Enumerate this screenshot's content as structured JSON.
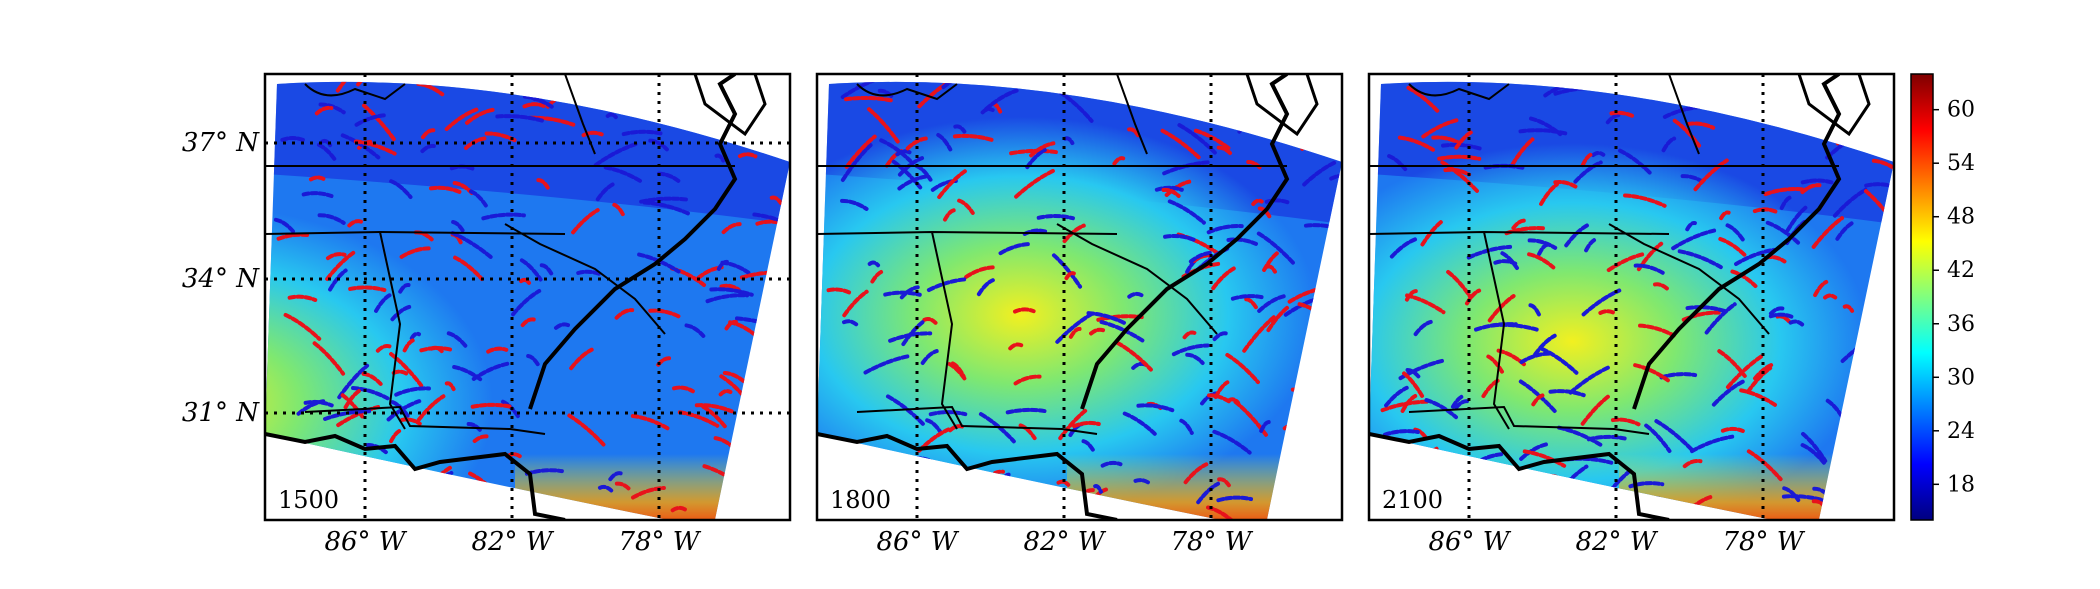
{
  "panels": [
    {
      "time": "1500",
      "hot": [
        0.22,
        0.62
      ]
    },
    {
      "time": "1800",
      "hot": [
        0.45,
        0.52
      ]
    },
    {
      "time": "2100",
      "hot": [
        0.45,
        0.55
      ]
    }
  ],
  "lat_labels": [
    "37° N",
    "34° N",
    "31° N"
  ],
  "lon_labels": [
    "86° W",
    "82° W",
    "78° W"
  ],
  "colorbar": {
    "ticks": [
      "60",
      "54",
      "48",
      "42",
      "36",
      "30",
      "24",
      "18"
    ],
    "min": 14,
    "max": 64,
    "colormap": "jet"
  },
  "colors": {
    "front_red": "#e8121b",
    "front_blue": "#1a1ad6"
  }
}
